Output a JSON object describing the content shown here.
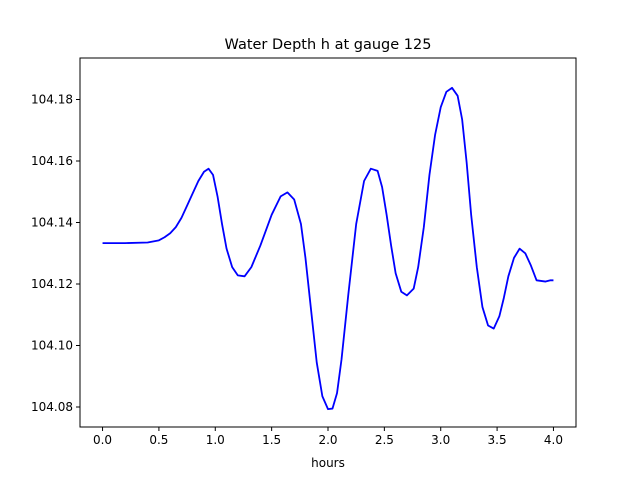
{
  "chart_data": {
    "type": "line",
    "title": "Water Depth h at gauge 125",
    "xlabel": "hours",
    "ylabel": "",
    "xlim": [
      -0.2,
      4.2
    ],
    "ylim": [
      104.0735,
      104.1935
    ],
    "grid": false,
    "x_ticks": [
      0.0,
      0.5,
      1.0,
      1.5,
      2.0,
      2.5,
      3.0,
      3.5,
      4.0
    ],
    "x_tick_labels": [
      "0.0",
      "0.5",
      "1.0",
      "1.5",
      "2.0",
      "2.5",
      "3.0",
      "3.5",
      "4.0"
    ],
    "y_ticks": [
      104.08,
      104.1,
      104.12,
      104.14,
      104.16,
      104.18
    ],
    "y_tick_labels": [
      "104.08",
      "104.10",
      "104.12",
      "104.14",
      "104.16",
      "104.18"
    ],
    "series": [
      {
        "color": "#0000ff",
        "x": [
          0.0,
          0.2,
          0.4,
          0.5,
          0.55,
          0.6,
          0.65,
          0.7,
          0.75,
          0.8,
          0.85,
          0.9,
          0.94,
          0.98,
          1.02,
          1.06,
          1.1,
          1.15,
          1.2,
          1.26,
          1.32,
          1.4,
          1.5,
          1.58,
          1.64,
          1.7,
          1.76,
          1.8,
          1.85,
          1.9,
          1.95,
          2.0,
          2.04,
          2.08,
          2.12,
          2.18,
          2.25,
          2.32,
          2.38,
          2.44,
          2.48,
          2.52,
          2.56,
          2.6,
          2.65,
          2.7,
          2.76,
          2.8,
          2.85,
          2.9,
          2.95,
          3.0,
          3.05,
          3.1,
          3.15,
          3.19,
          3.23,
          3.27,
          3.32,
          3.37,
          3.42,
          3.47,
          3.52,
          3.56,
          3.6,
          3.65,
          3.7,
          3.75,
          3.8,
          3.85,
          3.89,
          3.93,
          3.97,
          4.0
        ],
        "y": [
          104.1333,
          104.1333,
          104.1335,
          104.1342,
          104.1352,
          104.1365,
          104.1385,
          104.1415,
          104.1455,
          104.1495,
          104.1535,
          104.1565,
          104.1575,
          104.1555,
          104.1485,
          104.1395,
          104.1315,
          104.1255,
          104.1228,
          104.1225,
          104.1255,
          104.1325,
          104.1425,
          104.1485,
          104.1498,
          104.1475,
          104.1395,
          104.1285,
          104.1115,
          104.0945,
          104.0835,
          104.0793,
          104.0795,
          104.0845,
          104.0955,
          104.1165,
          104.1395,
          104.1535,
          104.1575,
          104.1568,
          104.1515,
          104.1425,
          104.1325,
          104.1235,
          104.1175,
          104.1163,
          104.1185,
          104.1255,
          104.1385,
          104.1555,
          104.1685,
          104.1775,
          104.1825,
          104.1838,
          104.1812,
          104.1735,
          104.1595,
          104.1425,
          104.1255,
          104.1125,
          104.1065,
          104.1055,
          104.1095,
          104.1155,
          104.1225,
          104.1285,
          104.1315,
          104.13,
          104.126,
          104.1212,
          104.121,
          104.1208,
          104.1212,
          104.1212
        ]
      }
    ]
  }
}
